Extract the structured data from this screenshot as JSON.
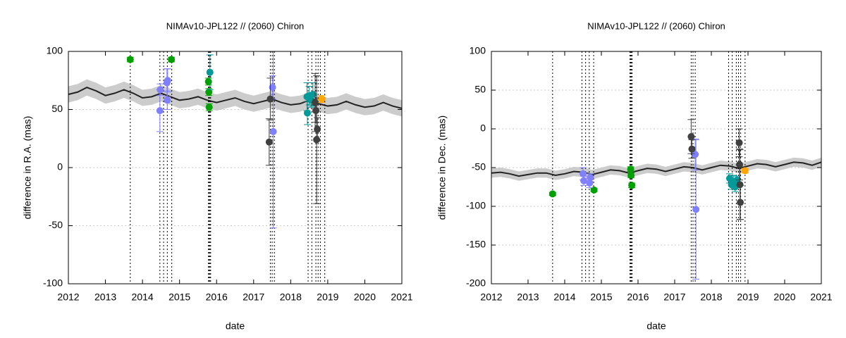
{
  "chart_data": [
    {
      "type": "scatter",
      "title": "NIMAv10-JPL122 // (2060) Chiron",
      "xlabel": "date",
      "ylabel": "difference in R.A. (mas)",
      "xlim": [
        2012,
        2021
      ],
      "xticks": [
        2012,
        2013,
        2014,
        2015,
        2016,
        2017,
        2018,
        2019,
        2020,
        2021
      ],
      "ylim": [
        -100,
        100
      ],
      "yticks": [
        -100,
        -50,
        0,
        50,
        100
      ],
      "grid": true,
      "vlines": [
        2013.67,
        2014.47,
        2014.57,
        2014.67,
        2014.79,
        2015.78,
        2015.8,
        2015.82,
        2015.84,
        2017.45,
        2017.5,
        2017.56,
        2018.47,
        2018.57,
        2018.68,
        2018.74,
        2018.8,
        2018.92
      ],
      "model": {
        "color": "#222222",
        "band_color": "#cccccc",
        "band": 7,
        "x": [
          2012,
          2012.25,
          2012.5,
          2012.75,
          2013,
          2013.25,
          2013.5,
          2013.75,
          2014,
          2014.25,
          2014.5,
          2014.75,
          2015,
          2015.25,
          2015.5,
          2015.75,
          2016,
          2016.25,
          2016.5,
          2016.75,
          2017,
          2017.25,
          2017.5,
          2017.75,
          2018,
          2018.25,
          2018.5,
          2018.75,
          2019,
          2019.25,
          2019.5,
          2019.75,
          2020,
          2020.25,
          2020.5,
          2020.75,
          2021
        ],
        "values": [
          63,
          65,
          69,
          66,
          62,
          64,
          67,
          64,
          60,
          61,
          64,
          61,
          58,
          59,
          61,
          58,
          56,
          58,
          60,
          57,
          55,
          57,
          59,
          56,
          54,
          55,
          58,
          55,
          53,
          54,
          57,
          54,
          52,
          53,
          56,
          53,
          51
        ]
      },
      "series": [
        {
          "color": "#00a000",
          "x": [
            2013.67,
            2014.78,
            2015.78,
            2015.79,
            2015.8
          ],
          "values": [
            93,
            93,
            74,
            65,
            52
          ],
          "errors": [
            2,
            2,
            3,
            3,
            3
          ]
        },
        {
          "color": "#8080ff",
          "x": [
            2014.47,
            2014.48,
            2014.66,
            2014.67,
            2014.68,
            2017.51,
            2017.53
          ],
          "values": [
            49,
            67,
            73,
            58,
            75,
            69,
            31
          ],
          "errors": [
            18,
            5,
            12,
            8,
            10,
            10,
            83
          ]
        },
        {
          "color": "#009a9a",
          "x": [
            2015.82,
            2018.44,
            2018.45,
            2018.5,
            2018.55,
            2018.6
          ],
          "values": [
            82,
            61,
            47,
            62,
            58,
            63
          ],
          "errors": [
            15,
            12,
            10,
            8,
            6,
            10
          ]
        },
        {
          "color": "#404040",
          "x": [
            2017.42,
            2017.45,
            2018.66,
            2018.68,
            2018.7,
            2018.72
          ],
          "values": [
            22,
            59,
            56,
            49,
            24,
            33
          ],
          "errors": [
            20,
            18,
            25,
            10,
            55,
            10
          ]
        },
        {
          "color": "#ffa500",
          "x": [
            2018.84
          ],
          "values": [
            59
          ],
          "errors": [
            3
          ]
        }
      ]
    },
    {
      "type": "scatter",
      "title": "NIMAv10-JPL122 // (2060) Chiron",
      "xlabel": "date",
      "ylabel": "difference in Dec. (mas)",
      "xlim": [
        2012,
        2021
      ],
      "xticks": [
        2012,
        2013,
        2014,
        2015,
        2016,
        2017,
        2018,
        2019,
        2020,
        2021
      ],
      "ylim": [
        -200,
        100
      ],
      "yticks": [
        -200,
        -150,
        -100,
        -50,
        0,
        50,
        100
      ],
      "grid": true,
      "vlines": [
        2013.67,
        2014.47,
        2014.57,
        2014.67,
        2014.79,
        2015.78,
        2015.8,
        2015.82,
        2015.84,
        2017.45,
        2017.5,
        2017.56,
        2018.47,
        2018.57,
        2018.68,
        2018.74,
        2018.8,
        2018.92
      ],
      "model": {
        "color": "#222222",
        "band_color": "#cccccc",
        "band": 6,
        "x": [
          2012,
          2012.25,
          2012.5,
          2012.75,
          2013,
          2013.25,
          2013.5,
          2013.75,
          2014,
          2014.25,
          2014.5,
          2014.75,
          2015,
          2015.25,
          2015.5,
          2015.75,
          2016,
          2016.25,
          2016.5,
          2016.75,
          2017,
          2017.25,
          2017.5,
          2017.75,
          2018,
          2018.25,
          2018.5,
          2018.75,
          2019,
          2019.25,
          2019.5,
          2019.75,
          2020,
          2020.25,
          2020.5,
          2020.75,
          2021
        ],
        "values": [
          -57,
          -56,
          -58,
          -61,
          -59,
          -57,
          -57,
          -60,
          -58,
          -55,
          -56,
          -59,
          -56,
          -53,
          -54,
          -57,
          -54,
          -51,
          -52,
          -55,
          -52,
          -49,
          -50,
          -53,
          -50,
          -47,
          -48,
          -51,
          -48,
          -45,
          -46,
          -49,
          -46,
          -43,
          -44,
          -47,
          -43
        ]
      },
      "series": [
        {
          "color": "#00a000",
          "x": [
            2013.67,
            2014.8,
            2015.8,
            2015.81,
            2015.83
          ],
          "values": [
            -84,
            -79,
            -52,
            -60,
            -73
          ],
          "errors": [
            2,
            2,
            3,
            3,
            3
          ]
        },
        {
          "color": "#8080ff",
          "x": [
            2014.5,
            2014.52,
            2014.68,
            2014.7,
            2017.56,
            2017.58
          ],
          "values": [
            -58,
            -67,
            -70,
            -63,
            -33,
            -104
          ],
          "errors": [
            8,
            6,
            6,
            5,
            20,
            90
          ]
        },
        {
          "color": "#009a9a",
          "x": [
            2018.5,
            2018.55,
            2018.6,
            2018.65,
            2018.7
          ],
          "values": [
            -64,
            -72,
            -68,
            -75,
            -66
          ],
          "errors": [
            6,
            6,
            8,
            6,
            5
          ]
        },
        {
          "color": "#404040",
          "x": [
            2017.45,
            2017.47,
            2018.76,
            2018.77,
            2018.78,
            2018.79
          ],
          "values": [
            -10,
            -26,
            -18,
            -46,
            -72,
            -95
          ],
          "errors": [
            22,
            12,
            18,
            20,
            45,
            22
          ]
        },
        {
          "color": "#ffa500",
          "x": [
            2018.92
          ],
          "values": [
            -54
          ],
          "errors": [
            3
          ]
        }
      ]
    }
  ]
}
